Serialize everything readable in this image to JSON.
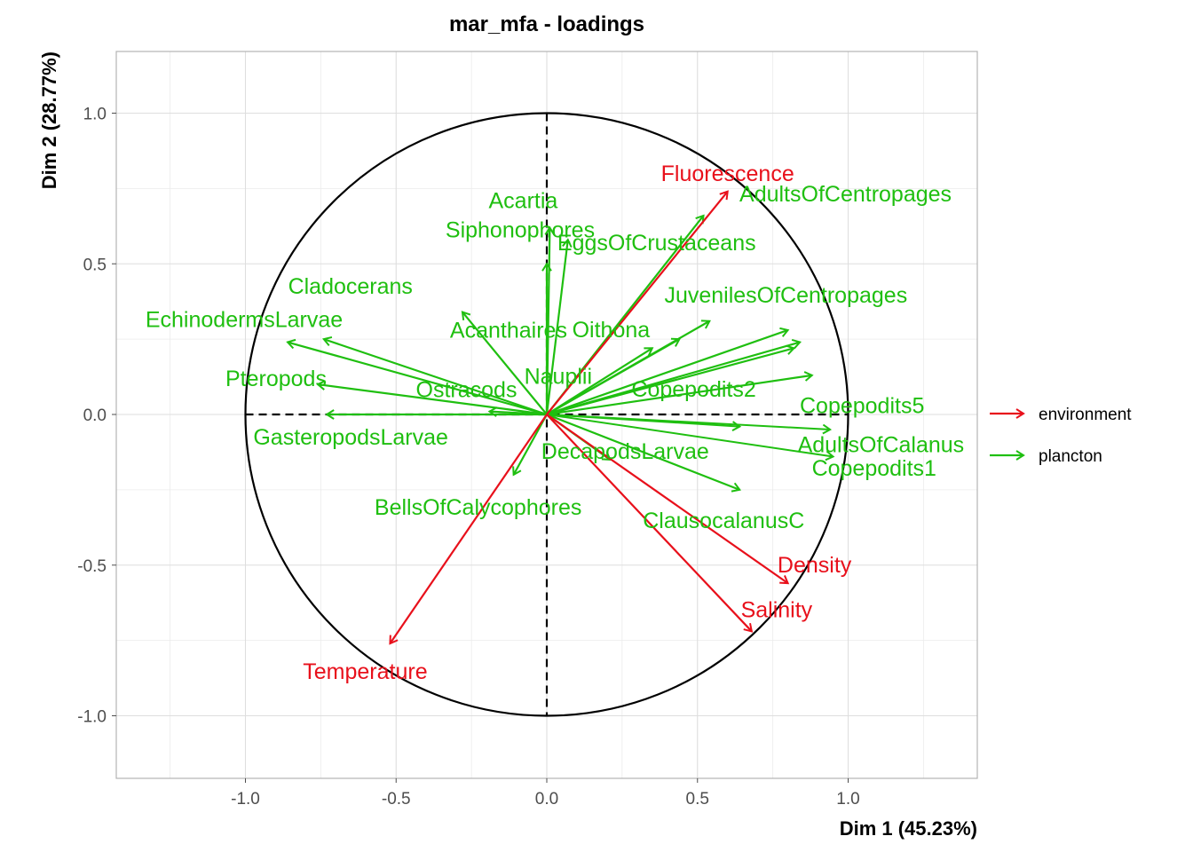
{
  "chart_data": {
    "type": "scatter",
    "subtype": "correlation-circle-loadings",
    "title": "mar_mfa - loadings",
    "xlabel": "Dim 1 (45.23%)",
    "ylabel": "Dim 2 (28.77%)",
    "xlim": [
      -1.42,
      1.42
    ],
    "ylim": [
      -1.2,
      1.2
    ],
    "xticks": [
      -1.0,
      -0.5,
      0.0,
      0.5,
      1.0
    ],
    "yticks": [
      -1.0,
      -0.5,
      0.0,
      0.5,
      1.0
    ],
    "xtick_labels": [
      "-1.0",
      "-0.5",
      "0.0",
      "0.5",
      "1.0"
    ],
    "ytick_labels": [
      "-1.0",
      "-0.5",
      "0.0",
      "0.5",
      "1.0"
    ],
    "grid": true,
    "unit_circle": true,
    "legend_position": "right",
    "colors": {
      "environment": "#e8101b",
      "plancton": "#1fbf10"
    },
    "series": [
      {
        "name": "environment",
        "points": [
          {
            "label": "Fluorescence",
            "x": 0.6,
            "y": 0.74
          },
          {
            "label": "Density",
            "x": 0.8,
            "y": -0.56
          },
          {
            "label": "Salinity",
            "x": 0.68,
            "y": -0.72
          },
          {
            "label": "Temperature",
            "x": -0.52,
            "y": -0.76
          }
        ]
      },
      {
        "name": "plancton",
        "points": [
          {
            "label": "AdultsOfCentropages",
            "x": 0.52,
            "y": 0.66
          },
          {
            "label": "Acartia",
            "x": 0.01,
            "y": 0.62
          },
          {
            "label": "EggsOfCrustaceans",
            "x": 0.07,
            "y": 0.58
          },
          {
            "label": "Siphonophores",
            "x": 0.0,
            "y": 0.5
          },
          {
            "label": "JuvenilesOfCentropages",
            "x": 0.54,
            "y": 0.31
          },
          {
            "label": "Cladocerans",
            "x": -0.74,
            "y": 0.25
          },
          {
            "label": "EchinodermsLarvae",
            "x": -0.86,
            "y": 0.24
          },
          {
            "label": "Acanthaires",
            "x": -0.28,
            "y": 0.34
          },
          {
            "label": "Oithona",
            "x": 0.44,
            "y": 0.25
          },
          {
            "label": "Nauplii",
            "x": 0.35,
            "y": 0.22
          },
          {
            "label": "Pteropods",
            "x": -0.76,
            "y": 0.1
          },
          {
            "label": "Ostracods",
            "x": -0.19,
            "y": 0.01
          },
          {
            "label": "Copepodits2",
            "x": 0.8,
            "y": 0.28
          },
          {
            "label": "Copepodits5",
            "x": 0.84,
            "y": 0.24
          },
          {
            "label": "AdultsOfCalanus",
            "x": 0.82,
            "y": 0.22
          },
          {
            "label": "Copepodits1",
            "x": 0.88,
            "y": 0.13
          },
          {
            "label": "GasteropodsLarvae",
            "x": -0.73,
            "y": 0.0
          },
          {
            "label": "DecapodsLarvae",
            "x": 0.21,
            "y": -0.15
          },
          {
            "label": "BellsOfCalycophores",
            "x": -0.11,
            "y": -0.2
          },
          {
            "label": "ClausocalanusC",
            "x": 0.64,
            "y": -0.25
          }
        ]
      }
    ],
    "extra_arrows": [
      {
        "series": "plancton",
        "x": 0.64,
        "y": -0.04
      },
      {
        "series": "plancton",
        "x": 0.94,
        "y": -0.05
      },
      {
        "series": "plancton",
        "x": 0.95,
        "y": -0.14
      }
    ]
  }
}
